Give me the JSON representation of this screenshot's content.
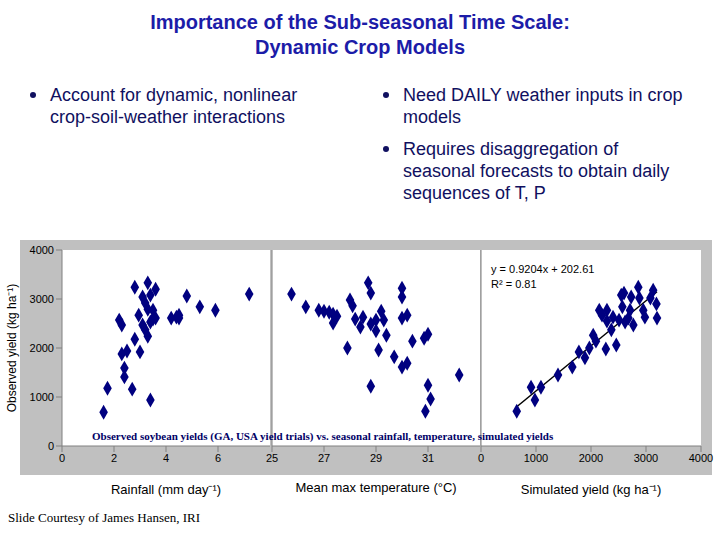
{
  "title": [
    "Importance of the Sub-seasonal Time Scale:",
    "Dynamic Crop Models"
  ],
  "bullets_left": [
    "Account for dynamic, nonlinear crop-soil-weather interactions"
  ],
  "bullets_right": [
    "Need DAILY weather inputs in crop models",
    "Requires disaggregation of seasonal forecasts to obtain daily sequences of T, P"
  ],
  "caption": "Observed soybean yields (GA, USA yield trials) vs. seasonal rainfall, temperature, simulated yields",
  "credit": "Slide Courtesy of James Hansen, IRI",
  "chart_data": [
    {
      "type": "scatter",
      "x_label": "Rainfall (mm day⁻¹)",
      "y_label": "Observed yield (kg ha⁻¹)",
      "xlim": [
        0,
        8
      ],
      "xticks": [
        0,
        2,
        4,
        6
      ],
      "ylim": [
        0,
        4000
      ],
      "yticks": [
        0,
        1000,
        2000,
        3000,
        4000
      ],
      "tick_labels": true,
      "marker": "diamond",
      "color": "#000080",
      "x": [
        1.6,
        1.75,
        2.2,
        2.3,
        2.3,
        2.4,
        2.4,
        2.5,
        2.7,
        2.8,
        2.8,
        2.95,
        3.0,
        3.1,
        3.1,
        3.2,
        3.2,
        3.3,
        3.3,
        3.3,
        3.4,
        3.4,
        3.4,
        3.5,
        3.5,
        3.6,
        3.6,
        4.2,
        4.4,
        4.5,
        4.5,
        4.8,
        5.3,
        5.9,
        7.2
      ],
      "values": [
        690,
        1180,
        2570,
        2470,
        1880,
        1590,
        1410,
        1940,
        1160,
        3240,
        2180,
        2670,
        1920,
        3040,
        2470,
        2370,
        2920,
        3330,
        2790,
        2240,
        3080,
        2530,
        940,
        2770,
        2590,
        3200,
        2610,
        2610,
        2630,
        2670,
        2610,
        3060,
        2840,
        2770,
        3100
      ]
    },
    {
      "type": "scatter",
      "x_label": "Mean max temperature (°C)",
      "xlim": [
        25,
        33
      ],
      "xticks": [
        25,
        27,
        29,
        31
      ],
      "ylim": [
        0,
        4000
      ],
      "yticks": [
        0,
        1000,
        2000,
        3000,
        4000
      ],
      "tick_labels": "x",
      "marker": "diamond",
      "color": "#000080",
      "x": [
        25.75,
        26.3,
        26.8,
        27.0,
        27.2,
        27.35,
        27.35,
        27.5,
        27.9,
        28.0,
        28.1,
        28.2,
        28.4,
        28.5,
        28.7,
        28.8,
        28.8,
        28.8,
        29.0,
        29.0,
        29.1,
        29.2,
        29.3,
        29.4,
        29.7,
        30.0,
        30.0,
        30.0,
        30.0,
        30.2,
        30.2,
        30.4,
        30.85,
        30.9,
        31.0,
        31.0,
        31.1,
        32.2
      ],
      "values": [
        3100,
        2840,
        2770,
        2750,
        2730,
        2510,
        2690,
        2650,
        2000,
        2980,
        2860,
        2590,
        2430,
        2630,
        3330,
        2490,
        1220,
        3120,
        2570,
        2350,
        1960,
        2750,
        2570,
        2260,
        1820,
        2610,
        1610,
        3220,
        3040,
        2670,
        1690,
        2140,
        2200,
        710,
        2280,
        1240,
        960,
        1450
      ]
    },
    {
      "type": "scatter",
      "x_label": "Simulated yield (kg ha⁻¹)",
      "xlim": [
        0,
        4000
      ],
      "xticks": [
        0,
        1000,
        2000,
        3000,
        4000
      ],
      "ylim": [
        0,
        4000
      ],
      "yticks": [
        0,
        1000,
        2000,
        3000,
        4000
      ],
      "tick_labels": "x",
      "marker": "diamond",
      "color": "#000080",
      "x": [
        650,
        910,
        980,
        1090,
        1400,
        1660,
        1780,
        1890,
        1970,
        2040,
        2090,
        2150,
        2200,
        2270,
        2290,
        2370,
        2400,
        2460,
        2510,
        2550,
        2570,
        2600,
        2620,
        2680,
        2710,
        2730,
        2770,
        2860,
        2880,
        2950,
        2980,
        3080,
        3130,
        3190,
        3200,
        2290
      ],
      "values": [
        710,
        1200,
        940,
        1200,
        1450,
        1610,
        1920,
        1800,
        2000,
        2260,
        2140,
        2770,
        2670,
        1980,
        2550,
        2370,
        2630,
        2060,
        2570,
        3080,
        2840,
        3120,
        2530,
        2610,
        2770,
        3040,
        2470,
        3240,
        3020,
        2770,
        2630,
        3020,
        3180,
        2900,
        2610,
        2770
      ],
      "fit": {
        "slope": 0.9204,
        "intercept": 202.61,
        "color": "#000000"
      },
      "annotations": [
        "y = 0.9204x + 202.61",
        "R² = 0.81"
      ]
    }
  ]
}
